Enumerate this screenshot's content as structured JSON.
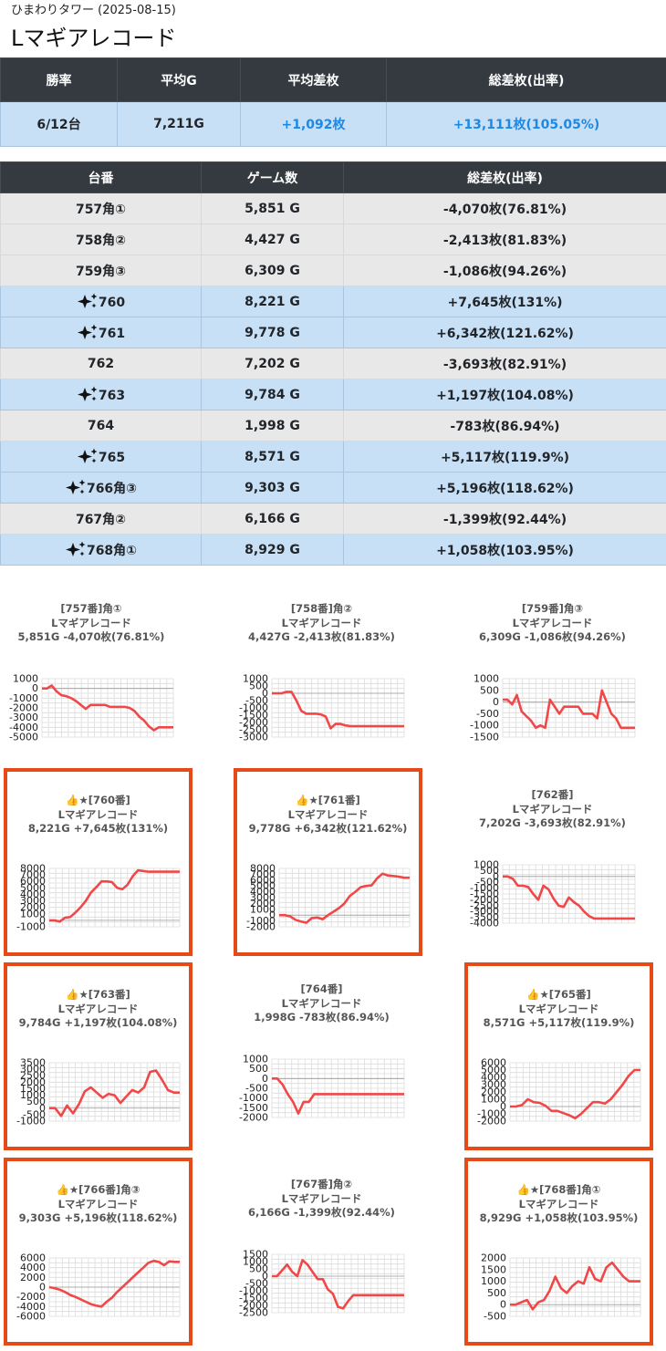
{
  "header": {
    "subtitle": "ひまわりタワー (2025-08-15)",
    "title": "Lマギアレコード"
  },
  "summary": {
    "columns": [
      "勝率",
      "平均G",
      "平均差枚",
      "総差枚(出率)"
    ],
    "values": [
      "6/12台",
      "7,211G",
      "+1,092枚",
      "+13,111枚(105.05%)"
    ]
  },
  "units_table": {
    "columns": [
      "台番",
      "ゲーム数",
      "総差枚(出率)"
    ],
    "rows": [
      {
        "unit": "757角①",
        "games": "5,851 G",
        "diff": "-4,070枚(76.81%)",
        "highlight": false
      },
      {
        "unit": "758角②",
        "games": "4,427 G",
        "diff": "-2,413枚(81.83%)",
        "highlight": false
      },
      {
        "unit": "759角③",
        "games": "6,309 G",
        "diff": "-1,086枚(94.26%)",
        "highlight": false
      },
      {
        "unit": "760",
        "games": "8,221 G",
        "diff": "+7,645枚(131%)",
        "highlight": true
      },
      {
        "unit": "761",
        "games": "9,778 G",
        "diff": "+6,342枚(121.62%)",
        "highlight": true
      },
      {
        "unit": "762",
        "games": "7,202 G",
        "diff": "-3,693枚(82.91%)",
        "highlight": false
      },
      {
        "unit": "763",
        "games": "9,784 G",
        "diff": "+1,197枚(104.08%)",
        "highlight": true
      },
      {
        "unit": "764",
        "games": "1,998 G",
        "diff": "-783枚(86.94%)",
        "highlight": false
      },
      {
        "unit": "765",
        "games": "8,571 G",
        "diff": "+5,117枚(119.9%)",
        "highlight": true
      },
      {
        "unit": "766角③",
        "games": "9,303 G",
        "diff": "+5,196枚(118.62%)",
        "highlight": true
      },
      {
        "unit": "767角②",
        "games": "6,166 G",
        "diff": "-1,399枚(92.44%)",
        "highlight": false
      },
      {
        "unit": "768角①",
        "games": "8,929 G",
        "diff": "+1,058枚(103.95%)",
        "highlight": true
      }
    ]
  },
  "colors": {
    "header_bg": "#343a40",
    "highlight_row": "#c8e0f6",
    "gray_row": "#e8e8e8",
    "positive_text": "#1e88e5",
    "card_border": "#e64a19",
    "line": "#f04848"
  },
  "icons": {
    "highlight_marker": "sparkles-icon"
  },
  "chart_data": [
    {
      "type": "line",
      "highlight": false,
      "title_lines": [
        "[757番]角①",
        "Lマギアレコード",
        "5,851G -4,070枚(76.81%)"
      ],
      "yticks": [
        1000,
        0,
        -1000,
        -2000,
        -3000,
        -4000,
        -5000
      ],
      "ylim": [
        -5000,
        1000
      ],
      "values": [
        0,
        0,
        300,
        -300,
        -700,
        -800,
        -1000,
        -1300,
        -1700,
        -2100,
        -1700,
        -1700,
        -1700,
        -1700,
        -1900,
        -1900,
        -1900,
        -1900,
        -2000,
        -2300,
        -2900,
        -3300,
        -3900,
        -4300,
        -4000,
        -4000,
        -4000,
        -4000
      ]
    },
    {
      "type": "line",
      "highlight": false,
      "title_lines": [
        "[758番]角②",
        "Lマギアレコード",
        "4,427G -2,413枚(81.83%)"
      ],
      "yticks": [
        1000,
        500,
        0,
        -500,
        -1000,
        -1500,
        -2000,
        -2500,
        -3000
      ],
      "ylim": [
        -3000,
        1000
      ],
      "values": [
        0,
        0,
        0,
        100,
        100,
        -500,
        -1200,
        -1400,
        -1400,
        -1400,
        -1450,
        -1600,
        -2400,
        -2100,
        -2100,
        -2200,
        -2250,
        -2250,
        -2250,
        -2250,
        -2250,
        -2250,
        -2250,
        -2250,
        -2250,
        -2250,
        -2250,
        -2250
      ]
    },
    {
      "type": "line",
      "highlight": false,
      "title_lines": [
        "[759番]角③",
        "Lマギアレコード",
        "6,309G -1,086枚(94.26%)"
      ],
      "yticks": [
        1000,
        500,
        0,
        -500,
        -1000,
        -1500
      ],
      "ylim": [
        -1500,
        1000
      ],
      "values": [
        100,
        100,
        -100,
        300,
        -400,
        -600,
        -800,
        -1100,
        -1000,
        -1100,
        100,
        -200,
        -500,
        -200,
        -200,
        -200,
        -200,
        -500,
        -500,
        -500,
        -700,
        500,
        0,
        -500,
        -700,
        -1100,
        -1100,
        -1100,
        -1100
      ]
    },
    {
      "type": "line",
      "highlight": true,
      "title_lines": [
        "👍★[760番]",
        "Lマギアレコード",
        "8,221G +7,645枚(131%)"
      ],
      "yticks": [
        8000,
        7000,
        6000,
        5000,
        4000,
        3000,
        2000,
        1000,
        0,
        -1000
      ],
      "ylim": [
        -1000,
        8000
      ],
      "values": [
        0,
        0,
        -200,
        400,
        500,
        1200,
        2000,
        3000,
        4300,
        5100,
        6000,
        6000,
        5900,
        5000,
        4800,
        5500,
        6800,
        7700,
        7600,
        7500,
        7500,
        7500,
        7500,
        7500,
        7500,
        7500
      ]
    },
    {
      "type": "line",
      "highlight": true,
      "title_lines": [
        "👍★[761番]",
        "Lマギアレコード",
        "9,778G +6,342枚(121.62%)"
      ],
      "yticks": [
        8000,
        7000,
        6000,
        5000,
        4000,
        3000,
        2000,
        1000,
        0,
        -1000,
        -2000
      ],
      "ylim": [
        -2000,
        8000
      ],
      "values": [
        0,
        0,
        -200,
        -800,
        -1100,
        -1300,
        -500,
        -400,
        -700,
        0,
        600,
        1200,
        2000,
        3300,
        4000,
        4800,
        5000,
        5100,
        6300,
        7100,
        6800,
        6700,
        6600,
        6400,
        6400
      ]
    },
    {
      "type": "line",
      "highlight": false,
      "title_lines": [
        "[762番]",
        "Lマギアレコード",
        "7,202G -3,693枚(82.91%)"
      ],
      "yticks": [
        1000,
        500,
        0,
        -500,
        -1000,
        -1500,
        -2000,
        -2500,
        -3000,
        -3500,
        -4000
      ],
      "ylim": [
        -4000,
        1000
      ],
      "values": [
        0,
        0,
        -200,
        -800,
        -800,
        -900,
        -1500,
        -2000,
        -800,
        -1100,
        -1900,
        -2500,
        -2600,
        -1800,
        -2200,
        -2500,
        -3000,
        -3400,
        -3600,
        -3600,
        -3600,
        -3600,
        -3600,
        -3600,
        -3600,
        -3600,
        -3600
      ]
    },
    {
      "type": "line",
      "highlight": true,
      "title_lines": [
        "👍★[763番]",
        "Lマギアレコード",
        "9,784G +1,197枚(104.08%)"
      ],
      "yticks": [
        3500,
        3000,
        2500,
        2000,
        1500,
        1000,
        500,
        0,
        -500,
        -1000
      ],
      "ylim": [
        -1000,
        3500
      ],
      "values": [
        0,
        0,
        -600,
        200,
        -400,
        300,
        1300,
        1600,
        1200,
        800,
        1100,
        1000,
        400,
        900,
        1400,
        1200,
        1600,
        2800,
        2900,
        2200,
        1400,
        1200,
        1200
      ]
    },
    {
      "type": "line",
      "highlight": false,
      "title_lines": [
        "[764番]",
        "Lマギアレコード",
        "1,998G -783枚(86.94%)"
      ],
      "yticks": [
        1000,
        500,
        0,
        -500,
        -1000,
        -1500,
        -2000
      ],
      "ylim": [
        -2000,
        1000
      ],
      "values": [
        0,
        0,
        -300,
        -800,
        -1200,
        -1800,
        -1200,
        -1200,
        -800,
        -800,
        -800,
        -800,
        -800,
        -800,
        -800,
        -800,
        -800,
        -800,
        -800,
        -800,
        -800,
        -800,
        -800,
        -800,
        -800,
        -800
      ]
    },
    {
      "type": "line",
      "highlight": true,
      "title_lines": [
        "👍★[765番]",
        "Lマギアレコード",
        "8,571G +5,117枚(119.9%)"
      ],
      "yticks": [
        6000,
        5000,
        4000,
        3000,
        2000,
        1000,
        0,
        -1000,
        -2000
      ],
      "ylim": [
        -2000,
        6000
      ],
      "values": [
        0,
        0,
        200,
        1000,
        600,
        500,
        100,
        -600,
        -600,
        -900,
        -1200,
        -1600,
        -1000,
        -200,
        600,
        600,
        400,
        1000,
        2000,
        3000,
        4200,
        5000,
        5000
      ]
    },
    {
      "type": "line",
      "highlight": true,
      "title_lines": [
        "👍★[766番]角③",
        "Lマギアレコード",
        "9,303G +5,196枚(118.62%)"
      ],
      "yticks": [
        6000,
        4000,
        2000,
        0,
        -2000,
        -4000,
        -6000
      ],
      "ylim": [
        -6000,
        6000
      ],
      "values": [
        0,
        -200,
        -500,
        -1000,
        -1600,
        -2000,
        -2500,
        -3000,
        -3500,
        -3800,
        -4000,
        -3000,
        -2200,
        -1000,
        0,
        1000,
        2000,
        3000,
        4000,
        5000,
        5400,
        5200,
        4500,
        5300,
        5200,
        5200
      ]
    },
    {
      "type": "line",
      "highlight": false,
      "title_lines": [
        "[767番]角②",
        "Lマギアレコード",
        "6,166G -1,399枚(92.44%)"
      ],
      "yticks": [
        1500,
        1000,
        500,
        0,
        -500,
        -1000,
        -1500,
        -2000,
        -2500
      ],
      "ylim": [
        -2500,
        1500
      ],
      "values": [
        0,
        0,
        400,
        800,
        300,
        0,
        1100,
        800,
        300,
        -200,
        -200,
        -900,
        -1200,
        -2100,
        -2200,
        -1700,
        -1300,
        -1300,
        -1300,
        -1300,
        -1300,
        -1300,
        -1300,
        -1300,
        -1300,
        -1300,
        -1300
      ]
    },
    {
      "type": "line",
      "highlight": true,
      "title_lines": [
        "👍★[768番]角①",
        "Lマギアレコード",
        "8,929G +1,058枚(103.95%)"
      ],
      "yticks": [
        2000,
        1500,
        1000,
        500,
        0,
        -500
      ],
      "ylim": [
        -500,
        2000
      ],
      "values": [
        0,
        0,
        100,
        200,
        -200,
        100,
        200,
        600,
        1200,
        700,
        500,
        800,
        1000,
        900,
        1600,
        1100,
        1000,
        1600,
        1800,
        1500,
        1200,
        1000,
        1000,
        1000
      ]
    }
  ]
}
